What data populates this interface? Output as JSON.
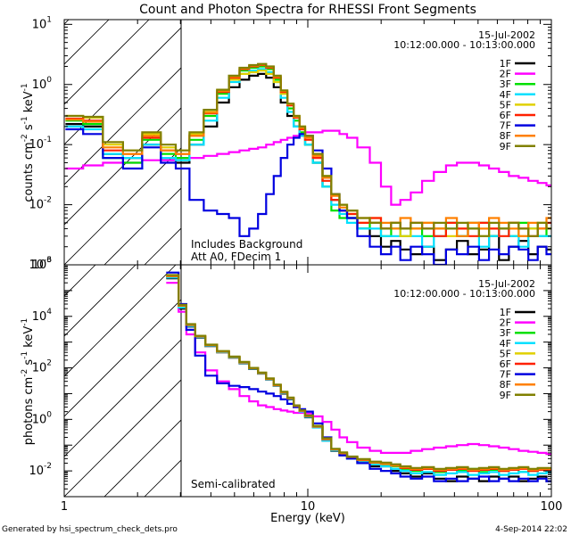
{
  "figure": {
    "title": "Count and Photon Spectra for RHESSI Front Segments",
    "xlabel": "Energy (keV)",
    "footer_left": "Generated by hsi_spectrum_check_dets.pro",
    "footer_right": "4-Sep-2014 22:02"
  },
  "legend": {
    "date": "15-Jul-2002",
    "time_range": "10:12:00.000 - 10:13:00.000"
  },
  "colors": {
    "1F": "#000000",
    "2F": "#ff00ff",
    "3F": "#00e000",
    "4F": "#00e0ff",
    "5F": "#e0d000",
    "6F": "#ff2000",
    "7F": "#0000e0",
    "8F": "#ff8000",
    "9F": "#808000",
    "shade_lines": "#000000"
  },
  "top_panel": {
    "ylabel_main": "counts cm",
    "ylabel_sup1": "-2",
    "ylabel_mid": " s",
    "ylabel_sup2": "-1",
    "ylabel_end": " keV",
    "ylabel_sup3": "-1",
    "annotation_line1": "Includes Background",
    "annotation_line2": "Att A0, FDecim 1",
    "ytick_labels": [
      {
        "base": "10",
        "exp": "1",
        "value": 10
      },
      {
        "base": "10",
        "exp": "0",
        "value": 1
      },
      {
        "base": "10",
        "exp": "-1",
        "value": 0.1
      },
      {
        "base": "10",
        "exp": "-2",
        "value": 0.01
      },
      {
        "base": "10",
        "exp": "-3",
        "value": 0.001
      }
    ]
  },
  "bottom_panel": {
    "ylabel_main": "photons cm",
    "ylabel_sup1": "-2",
    "ylabel_mid": " s",
    "ylabel_sup2": "-1",
    "ylabel_end": " keV",
    "ylabel_sup3": "-1",
    "annotation": "Semi-calibrated",
    "ytick_labels": [
      {
        "base": "10",
        "exp": "6",
        "value": 1000000
      },
      {
        "base": "10",
        "exp": "4",
        "value": 10000
      },
      {
        "base": "10",
        "exp": "2",
        "value": 100
      },
      {
        "base": "10",
        "exp": "0",
        "value": 1
      },
      {
        "base": "10",
        "exp": "-2",
        "value": 0.01
      }
    ]
  },
  "xtick_labels": [
    {
      "label": "1",
      "value": 1
    },
    {
      "label": "10",
      "value": 10
    },
    {
      "label": "100",
      "value": 100
    }
  ],
  "chart_data": [
    {
      "type": "line",
      "title": "Count and Photon Spectra for RHESSI Front Segments",
      "xlabel": "Energy (keV)",
      "ylabel": "counts cm^-2 s^-1 keV^-1",
      "xscale": "log",
      "yscale": "log",
      "xlim": [
        1,
        100
      ],
      "ylim": [
        0.001,
        12
      ],
      "energies": [
        1.1,
        1.3,
        1.6,
        1.9,
        2.3,
        2.7,
        3.05,
        3.5,
        4,
        4.5,
        5,
        5.5,
        6,
        6.5,
        7,
        7.5,
        8,
        8.5,
        9,
        9.5,
        10,
        11,
        12,
        13,
        14,
        15,
        17,
        19,
        21,
        23,
        25,
        28,
        31,
        35,
        39,
        43,
        48,
        53,
        58,
        64,
        70,
        77,
        84,
        92,
        99
      ],
      "series": [
        {
          "name": "1F",
          "values": [
            0.22,
            0.2,
            0.07,
            0.06,
            0.1,
            0.06,
            0.05,
            0.1,
            0.2,
            0.5,
            0.9,
            1.2,
            1.4,
            1.5,
            1.3,
            0.9,
            0.5,
            0.3,
            0.2,
            0.14,
            0.1,
            0.05,
            0.02,
            0.012,
            0.008,
            0.006,
            0.004,
            0.003,
            0.002,
            0.0025,
            0.0018,
            0.0015,
            0.002,
            0.0012,
            0.0018,
            0.0025,
            0.0015,
            0.0018,
            0.003,
            0.0012,
            0.002,
            0.0025,
            0.0015,
            0.002,
            0.0018
          ]
        },
        {
          "name": "2F",
          "values": [
            0.04,
            0.045,
            0.05,
            0.05,
            0.055,
            0.055,
            0.06,
            0.06,
            0.065,
            0.07,
            0.075,
            0.08,
            0.085,
            0.09,
            0.1,
            0.11,
            0.12,
            0.13,
            0.14,
            0.15,
            0.16,
            0.16,
            0.17,
            0.17,
            0.15,
            0.13,
            0.09,
            0.05,
            0.02,
            0.01,
            0.012,
            0.016,
            0.025,
            0.035,
            0.045,
            0.05,
            0.05,
            0.045,
            0.04,
            0.035,
            0.03,
            0.028,
            0.025,
            0.023,
            0.021
          ]
        },
        {
          "name": "3F",
          "values": [
            0.25,
            0.22,
            0.06,
            0.05,
            0.12,
            0.07,
            0.06,
            0.12,
            0.3,
            0.7,
            1.3,
            1.7,
            1.9,
            2.0,
            1.8,
            1.2,
            0.7,
            0.4,
            0.25,
            0.16,
            0.1,
            0.05,
            0.02,
            0.008,
            0.006,
            0.006,
            0.004,
            0.005,
            0.003,
            0.004,
            0.003,
            0.004,
            0.003,
            0.004,
            0.005,
            0.003,
            0.004,
            0.005,
            0.003,
            0.004,
            0.003,
            0.005,
            0.004,
            0.003,
            0.004
          ]
        },
        {
          "name": "4F",
          "values": [
            0.2,
            0.18,
            0.07,
            0.06,
            0.1,
            0.06,
            0.055,
            0.1,
            0.25,
            0.6,
            1.1,
            1.5,
            1.7,
            1.8,
            1.6,
            1.1,
            0.6,
            0.35,
            0.2,
            0.14,
            0.1,
            0.05,
            0.02,
            0.01,
            0.007,
            0.005,
            0.004,
            0.004,
            0.003,
            0.003,
            0.004,
            0.003,
            0.002,
            0.003,
            0.004,
            0.003,
            0.005,
            0.002,
            0.003,
            0.004,
            0.003,
            0.002,
            0.004,
            0.003,
            0.003
          ]
        },
        {
          "name": "5F",
          "values": [
            0.3,
            0.28,
            0.1,
            0.08,
            0.15,
            0.09,
            0.08,
            0.15,
            0.35,
            0.8,
            1.2,
            1.5,
            1.6,
            1.7,
            1.5,
            1.1,
            0.7,
            0.45,
            0.3,
            0.2,
            0.14,
            0.07,
            0.03,
            0.015,
            0.01,
            0.007,
            0.005,
            0.006,
            0.004,
            0.005,
            0.003,
            0.004,
            0.005,
            0.004,
            0.003,
            0.004,
            0.005,
            0.003,
            0.004,
            0.004,
            0.005,
            0.003,
            0.004,
            0.005,
            0.004
          ]
        },
        {
          "name": "6F",
          "values": [
            0.27,
            0.25,
            0.08,
            0.07,
            0.13,
            0.08,
            0.07,
            0.14,
            0.33,
            0.75,
            1.3,
            1.8,
            2.0,
            2.1,
            1.9,
            1.3,
            0.75,
            0.45,
            0.28,
            0.18,
            0.12,
            0.06,
            0.025,
            0.012,
            0.008,
            0.007,
            0.005,
            0.006,
            0.004,
            0.005,
            0.004,
            0.005,
            0.004,
            0.003,
            0.005,
            0.004,
            0.003,
            0.005,
            0.004,
            0.003,
            0.005,
            0.004,
            0.003,
            0.004,
            0.005
          ]
        },
        {
          "name": "7F",
          "values": [
            0.18,
            0.15,
            0.06,
            0.04,
            0.09,
            0.05,
            0.04,
            0.012,
            0.008,
            0.007,
            0.006,
            0.003,
            0.004,
            0.007,
            0.015,
            0.03,
            0.06,
            0.1,
            0.13,
            0.15,
            0.14,
            0.08,
            0.04,
            0.015,
            0.008,
            0.006,
            0.003,
            0.002,
            0.0015,
            0.002,
            0.0012,
            0.002,
            0.0015,
            0.001,
            0.0018,
            0.0015,
            0.002,
            0.0012,
            0.0018,
            0.0015,
            0.002,
            0.0018,
            0.0012,
            0.002,
            0.0015
          ]
        },
        {
          "name": "8F",
          "values": [
            0.26,
            0.24,
            0.09,
            0.07,
            0.14,
            0.08,
            0.07,
            0.14,
            0.34,
            0.78,
            1.35,
            1.85,
            2.05,
            2.15,
            1.95,
            1.35,
            0.78,
            0.47,
            0.29,
            0.19,
            0.13,
            0.065,
            0.028,
            0.014,
            0.009,
            0.008,
            0.006,
            0.005,
            0.005,
            0.004,
            0.006,
            0.004,
            0.005,
            0.004,
            0.006,
            0.003,
            0.005,
            0.004,
            0.006,
            0.005,
            0.004,
            0.003,
            0.005,
            0.004,
            0.006
          ]
        },
        {
          "name": "9F",
          "values": [
            0.3,
            0.29,
            0.11,
            0.08,
            0.16,
            0.1,
            0.08,
            0.16,
            0.38,
            0.82,
            1.4,
            1.9,
            2.1,
            2.2,
            2.0,
            1.4,
            0.8,
            0.48,
            0.3,
            0.2,
            0.14,
            0.07,
            0.03,
            0.015,
            0.01,
            0.008,
            0.006,
            0.005,
            0.004,
            0.005,
            0.004,
            0.005,
            0.004,
            0.005,
            0.004,
            0.005,
            0.004,
            0.003,
            0.005,
            0.004,
            0.005,
            0.004,
            0.003,
            0.005,
            0.004
          ]
        }
      ]
    },
    {
      "type": "line",
      "title": "",
      "xlabel": "Energy (keV)",
      "ylabel": "photons cm^-2 s^-1 keV^-1",
      "xscale": "log",
      "yscale": "log",
      "xlim": [
        1,
        100
      ],
      "ylim": [
        0.001,
        1000000
      ],
      "energies": [
        2.85,
        3.05,
        3.3,
        3.6,
        4,
        4.5,
        5,
        5.5,
        6,
        6.5,
        7,
        7.5,
        8,
        8.5,
        9,
        9.5,
        10,
        11,
        12,
        13,
        14,
        15,
        17,
        19,
        21,
        23,
        25,
        28,
        31,
        35,
        39,
        43,
        48,
        53,
        58,
        64,
        70,
        77,
        84,
        92,
        99
      ],
      "series": [
        {
          "name": "1F",
          "values": [
            300000,
            20000,
            4000,
            1500,
            700,
            400,
            250,
            150,
            90,
            60,
            35,
            20,
            10,
            6,
            3,
            2,
            1.2,
            0.5,
            0.15,
            0.06,
            0.04,
            0.03,
            0.02,
            0.015,
            0.015,
            0.01,
            0.008,
            0.006,
            0.008,
            0.005,
            0.004,
            0.006,
            0.005,
            0.004,
            0.006,
            0.005,
            0.006,
            0.004,
            0.005,
            0.006,
            0.004
          ]
        },
        {
          "name": "2F",
          "values": [
            200000,
            15000,
            2000,
            400,
            80,
            30,
            15,
            8,
            5,
            3.5,
            3,
            2.5,
            2.2,
            2,
            1.8,
            1.8,
            1.7,
            1.3,
            0.8,
            0.4,
            0.2,
            0.13,
            0.08,
            0.06,
            0.05,
            0.05,
            0.05,
            0.06,
            0.07,
            0.08,
            0.09,
            0.1,
            0.11,
            0.1,
            0.09,
            0.08,
            0.07,
            0.06,
            0.055,
            0.05,
            0.045
          ]
        },
        {
          "name": "3F",
          "values": [
            350000,
            25000,
            4500,
            1600,
            750,
            420,
            260,
            160,
            95,
            62,
            37,
            21,
            11,
            6.5,
            3.2,
            2.1,
            1.3,
            0.5,
            0.16,
            0.065,
            0.045,
            0.032,
            0.025,
            0.02,
            0.018,
            0.015,
            0.012,
            0.01,
            0.012,
            0.009,
            0.011,
            0.01,
            0.012,
            0.009,
            0.011,
            0.01,
            0.012,
            0.009,
            0.01,
            0.011,
            0.01
          ]
        },
        {
          "name": "4F",
          "values": [
            320000,
            22000,
            4200,
            1550,
            720,
            410,
            255,
            155,
            92,
            61,
            36,
            20,
            10.5,
            6.2,
            3.1,
            2,
            1.25,
            0.48,
            0.15,
            0.062,
            0.042,
            0.03,
            0.022,
            0.018,
            0.015,
            0.012,
            0.01,
            0.008,
            0.009,
            0.007,
            0.008,
            0.009,
            0.007,
            0.008,
            0.009,
            0.007,
            0.008,
            0.009,
            0.007,
            0.008,
            0.009
          ]
        },
        {
          "name": "5F",
          "values": [
            380000,
            27000,
            4800,
            1700,
            780,
            440,
            270,
            165,
            98,
            65,
            38,
            22,
            11.5,
            6.8,
            3.4,
            2.2,
            1.4,
            0.55,
            0.18,
            0.07,
            0.05,
            0.035,
            0.028,
            0.022,
            0.02,
            0.017,
            0.014,
            0.012,
            0.013,
            0.011,
            0.012,
            0.013,
            0.011,
            0.012,
            0.013,
            0.011,
            0.012,
            0.013,
            0.011,
            0.012,
            0.012
          ]
        },
        {
          "name": "6F",
          "values": [
            360000,
            26000,
            4600,
            1650,
            760,
            430,
            265,
            162,
            96,
            63,
            37,
            21,
            11,
            6.6,
            3.3,
            2.15,
            1.35,
            0.52,
            0.17,
            0.068,
            0.048,
            0.034,
            0.026,
            0.021,
            0.019,
            0.016,
            0.013,
            0.011,
            0.012,
            0.01,
            0.011,
            0.012,
            0.01,
            0.011,
            0.012,
            0.01,
            0.011,
            0.012,
            0.01,
            0.011,
            0.011
          ]
        },
        {
          "name": "7F",
          "values": [
            500000,
            30000,
            3000,
            300,
            50,
            25,
            20,
            18,
            15,
            12,
            10,
            8,
            6,
            4,
            3,
            2.5,
            2,
            0.7,
            0.2,
            0.07,
            0.04,
            0.03,
            0.02,
            0.012,
            0.01,
            0.008,
            0.006,
            0.005,
            0.006,
            0.004,
            0.005,
            0.004,
            0.005,
            0.006,
            0.004,
            0.005,
            0.004,
            0.005,
            0.004,
            0.005,
            0.004
          ]
        },
        {
          "name": "8F",
          "values": [
            370000,
            26500,
            4700,
            1680,
            770,
            435,
            268,
            164,
            97,
            64,
            37.5,
            21.5,
            11.2,
            6.7,
            3.35,
            2.18,
            1.38,
            0.53,
            0.175,
            0.069,
            0.049,
            0.035,
            0.027,
            0.021,
            0.019,
            0.016,
            0.014,
            0.012,
            0.013,
            0.011,
            0.012,
            0.013,
            0.011,
            0.012,
            0.013,
            0.011,
            0.012,
            0.013,
            0.011,
            0.012,
            0.012
          ]
        },
        {
          "name": "9F",
          "values": [
            400000,
            28000,
            5000,
            1750,
            800,
            450,
            275,
            170,
            100,
            66,
            39,
            22.5,
            11.8,
            7,
            3.5,
            2.25,
            1.42,
            0.56,
            0.185,
            0.072,
            0.052,
            0.036,
            0.029,
            0.023,
            0.021,
            0.018,
            0.015,
            0.013,
            0.014,
            0.012,
            0.013,
            0.014,
            0.012,
            0.013,
            0.014,
            0.012,
            0.013,
            0.014,
            0.012,
            0.013,
            0.013
          ]
        }
      ]
    }
  ]
}
